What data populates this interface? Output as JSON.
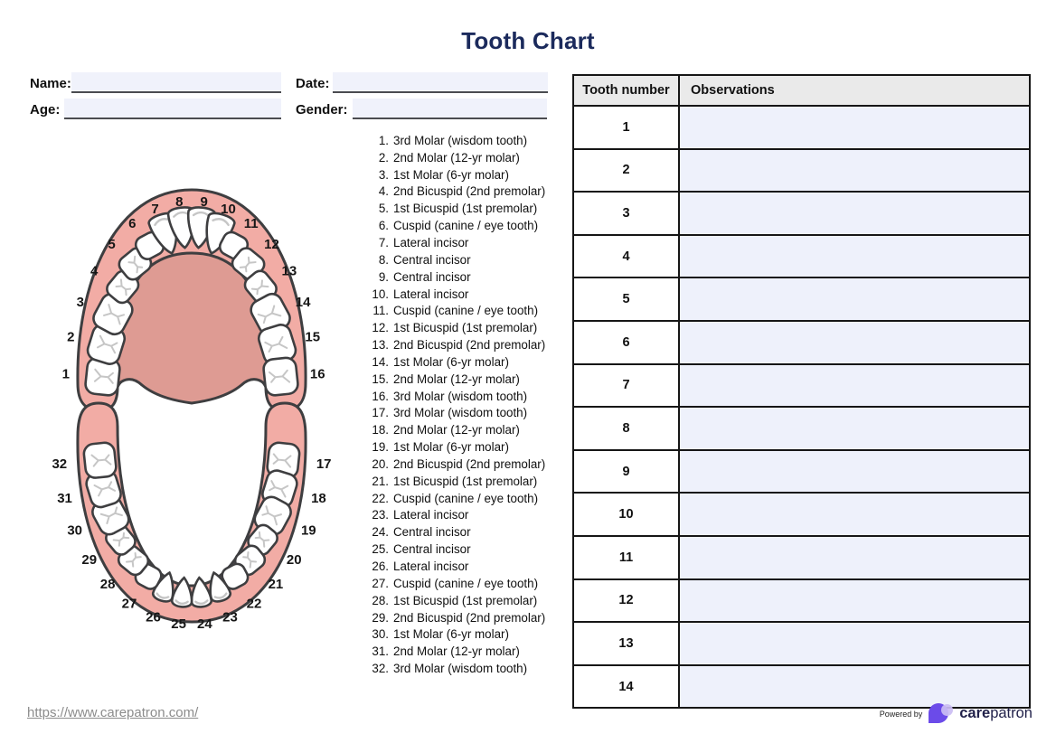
{
  "title": "Tooth Chart",
  "form": {
    "name_label": "Name:",
    "name_value": "",
    "date_label": "Date:",
    "date_value": "",
    "age_label": "Age:",
    "age_value": "",
    "gender_label": "Gender:",
    "gender_value": ""
  },
  "tooth_list": [
    {
      "num": "1.",
      "name": "3rd Molar (wisdom tooth)"
    },
    {
      "num": "2.",
      "name": "2nd Molar (12-yr molar)"
    },
    {
      "num": "3.",
      "name": "1st Molar (6-yr molar)"
    },
    {
      "num": "4.",
      "name": "2nd Bicuspid (2nd premolar)"
    },
    {
      "num": "5.",
      "name": "1st Bicuspid (1st premolar)"
    },
    {
      "num": "6.",
      "name": "Cuspid (canine / eye tooth)"
    },
    {
      "num": "7.",
      "name": "Lateral incisor"
    },
    {
      "num": "8.",
      "name": "Central incisor"
    },
    {
      "num": "9.",
      "name": "Central incisor"
    },
    {
      "num": "10.",
      "name": "Lateral incisor"
    },
    {
      "num": "11.",
      "name": "Cuspid (canine / eye tooth)"
    },
    {
      "num": "12.",
      "name": "1st Bicuspid (1st premolar)"
    },
    {
      "num": "13.",
      "name": "2nd Bicuspid (2nd premolar)"
    },
    {
      "num": "14.",
      "name": "1st Molar (6-yr molar)"
    },
    {
      "num": "15.",
      "name": "2nd Molar (12-yr molar)"
    },
    {
      "num": "16.",
      "name": "3rd Molar (wisdom tooth)"
    },
    {
      "num": "17.",
      "name": "3rd Molar (wisdom tooth)"
    },
    {
      "num": "18.",
      "name": "2nd Molar (12-yr molar)"
    },
    {
      "num": "19.",
      "name": "1st Molar (6-yr molar)"
    },
    {
      "num": "20.",
      "name": "2nd Bicuspid (2nd premolar)"
    },
    {
      "num": "21.",
      "name": "1st Bicuspid (1st premolar)"
    },
    {
      "num": "22.",
      "name": "Cuspid (canine / eye tooth)"
    },
    {
      "num": "23.",
      "name": "Lateral incisor"
    },
    {
      "num": "24.",
      "name": "Central incisor"
    },
    {
      "num": "25.",
      "name": "Central incisor"
    },
    {
      "num": "26.",
      "name": "Lateral incisor"
    },
    {
      "num": "27.",
      "name": "Cuspid (canine / eye tooth)"
    },
    {
      "num": "28.",
      "name": "1st Bicuspid (1st premolar)"
    },
    {
      "num": "29.",
      "name": "2nd Bicuspid (2nd premolar)"
    },
    {
      "num": "30.",
      "name": "1st Molar (6-yr molar)"
    },
    {
      "num": "31.",
      "name": "2nd Molar (12-yr molar)"
    },
    {
      "num": "32.",
      "name": "3rd Molar (wisdom tooth)"
    }
  ],
  "diagram": {
    "upper_numbers": [
      "1",
      "2",
      "3",
      "4",
      "5",
      "6",
      "7",
      "8",
      "9",
      "10",
      "11",
      "12",
      "13",
      "14",
      "15",
      "16"
    ],
    "lower_numbers": [
      "17",
      "18",
      "19",
      "20",
      "21",
      "22",
      "23",
      "24",
      "25",
      "26",
      "27",
      "28",
      "29",
      "30",
      "31",
      "32"
    ],
    "colors": {
      "gum": "#f2aca5",
      "palate": "#de9b93",
      "outline": "#3e3e40",
      "tooth": "#ffffff",
      "crack": "#c6c6c6",
      "number": "#161616"
    }
  },
  "table": {
    "headers": [
      "Tooth number",
      "Observations"
    ],
    "rows": [
      {
        "tooth_number": "1",
        "observation": ""
      },
      {
        "tooth_number": "2",
        "observation": ""
      },
      {
        "tooth_number": "3",
        "observation": ""
      },
      {
        "tooth_number": "4",
        "observation": ""
      },
      {
        "tooth_number": "5",
        "observation": ""
      },
      {
        "tooth_number": "6",
        "observation": ""
      },
      {
        "tooth_number": "7",
        "observation": ""
      },
      {
        "tooth_number": "8",
        "observation": ""
      },
      {
        "tooth_number": "9",
        "observation": ""
      },
      {
        "tooth_number": "10",
        "observation": ""
      },
      {
        "tooth_number": "11",
        "observation": ""
      },
      {
        "tooth_number": "12",
        "observation": ""
      },
      {
        "tooth_number": "13",
        "observation": ""
      },
      {
        "tooth_number": "14",
        "observation": ""
      }
    ]
  },
  "footer": {
    "url": "https://www.carepatron.com/",
    "powered_by": "Powered by",
    "brand_bold": "care",
    "brand_light": "patron"
  }
}
